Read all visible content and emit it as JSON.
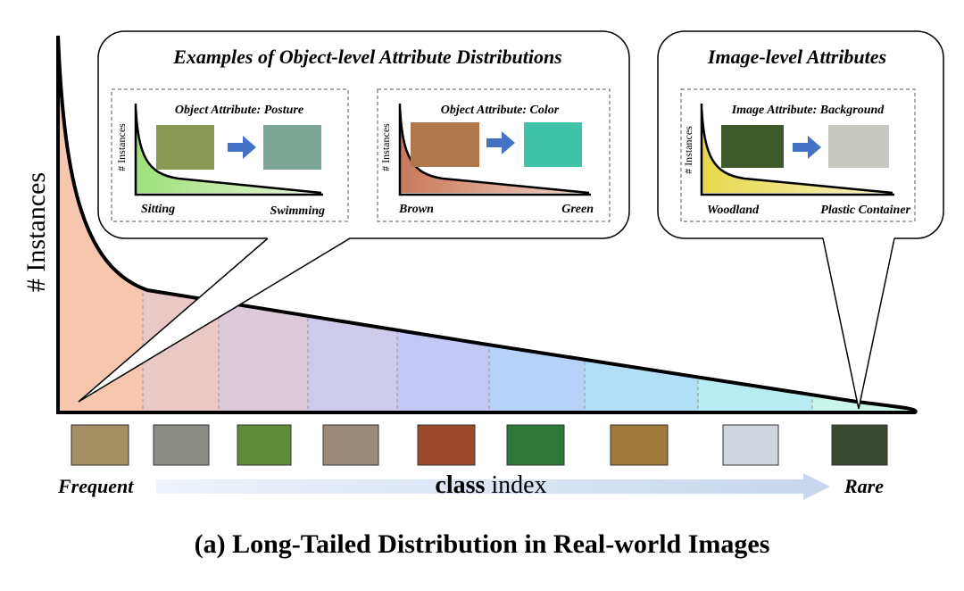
{
  "y_axis_label": "# Instances",
  "callouts": [
    {
      "title": "Examples of Object-level Attribute Distributions",
      "panels": [
        {
          "title": "Object Attribute: Posture",
          "y_label": "# Instances",
          "left_label": "Sitting",
          "right_label": "Swimming"
        },
        {
          "title": "Object Attribute:  Color",
          "y_label": "# Instances",
          "left_label": "Brown",
          "right_label": "Green"
        }
      ]
    },
    {
      "title": "Image-level Attributes",
      "panels": [
        {
          "title": "Image Attribute: Background",
          "y_label": "# Instances",
          "left_label": "Woodland",
          "right_label": "Plastic Container"
        }
      ]
    }
  ],
  "x_axis": {
    "left": "Frequent",
    "label_bold": "class",
    "label": "index",
    "right": "Rare"
  },
  "caption": "(a) Long-Tailed Distribution in Real-world Images"
}
